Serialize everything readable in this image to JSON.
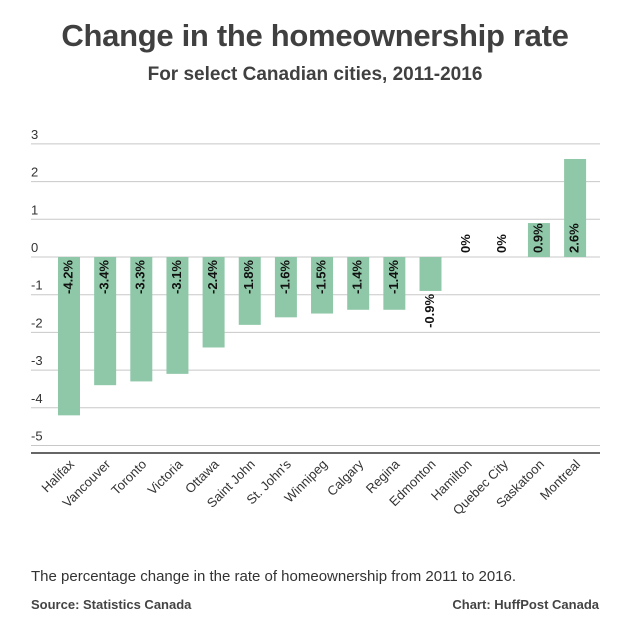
{
  "chart_data": {
    "type": "bar",
    "title": "Change in the homeownership rate",
    "subtitle": "For select Canadian cities, 2011-2016",
    "categories": [
      "Halifax",
      "Vancouver",
      "Toronto",
      "Victoria",
      "Ottawa",
      "Saint John",
      "St. John's",
      "Winnipeg",
      "Calgary",
      "Regina",
      "Edmonton",
      "Hamilton",
      "Quebec City",
      "Saskatoon",
      "Montreal"
    ],
    "values": [
      -4.2,
      -3.4,
      -3.3,
      -3.1,
      -2.4,
      -1.8,
      -1.6,
      -1.5,
      -1.4,
      -1.4,
      -0.9,
      0,
      0,
      0.9,
      2.6
    ],
    "data_labels": [
      "-4.2%",
      "-3.4%",
      "-3.3%",
      "-3.1%",
      "-2.4%",
      "-1.8%",
      "-1.6%",
      "-1.5%",
      "-1.4%",
      "-1.4%",
      "-0.9%",
      "0%",
      "0%",
      "0.9%",
      "2.6%"
    ],
    "yticks": [
      3,
      2,
      1,
      0,
      -1,
      -2,
      -3,
      -4,
      -5
    ],
    "ylim": [
      -5.2,
      3
    ],
    "grid": true,
    "bar_color": "#8fc8a8",
    "xlabel": "",
    "ylabel": ""
  },
  "footer": {
    "note": "The percentage change in the rate of homeownership from 2011 to 2016.",
    "source": "Source: Statistics Canada",
    "credit": "Chart: HuffPost Canada"
  }
}
